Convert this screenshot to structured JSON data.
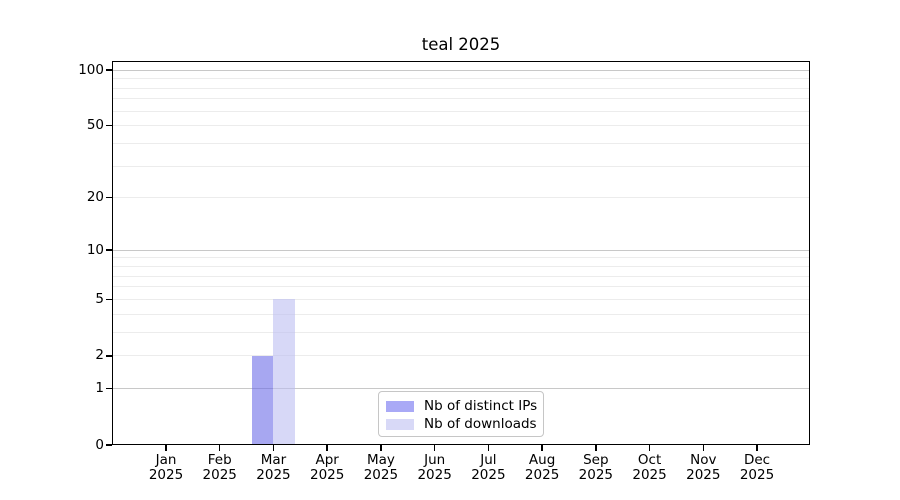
{
  "title": "teal 2025",
  "chart_data": {
    "type": "bar",
    "title": "teal 2025",
    "x_year": "2025",
    "categories": [
      "Jan",
      "Feb",
      "Mar",
      "Apr",
      "May",
      "Jun",
      "Jul",
      "Aug",
      "Sep",
      "Oct",
      "Nov",
      "Dec"
    ],
    "series": [
      {
        "name": "Nb of distinct IPs",
        "color": "#a9a9f6",
        "fill_rgba": "rgba(106,106,232,0.59)",
        "values": [
          0,
          0,
          2,
          0,
          0,
          0,
          0,
          0,
          0,
          0,
          0,
          0
        ]
      },
      {
        "name": "Nb of downloads",
        "color": "#d8d9f7",
        "fill_rgba": "rgba(187,189,241,0.59)",
        "values": [
          0,
          0,
          5,
          0,
          0,
          0,
          0,
          0,
          0,
          0,
          0,
          0
        ]
      }
    ],
    "y_scale": "log1p",
    "ylim": [
      0,
      112
    ],
    "y_ticks": [
      0,
      1,
      2,
      5,
      10,
      20,
      50,
      100
    ],
    "y_grid_major": [
      1,
      10,
      100
    ],
    "y_grid_minor": [
      2,
      3,
      4,
      5,
      6,
      7,
      8,
      9,
      20,
      30,
      40,
      50,
      60,
      70,
      80,
      90
    ],
    "grid": "horizontal",
    "legend_position": "bottom-center-inside"
  },
  "colors": {
    "background": "#ffffff",
    "axis": "#000000",
    "grid_major": "#c8c8c8",
    "grid_minor": "#ececec",
    "legend_border": "#c6c6c6",
    "text": "#000000"
  }
}
